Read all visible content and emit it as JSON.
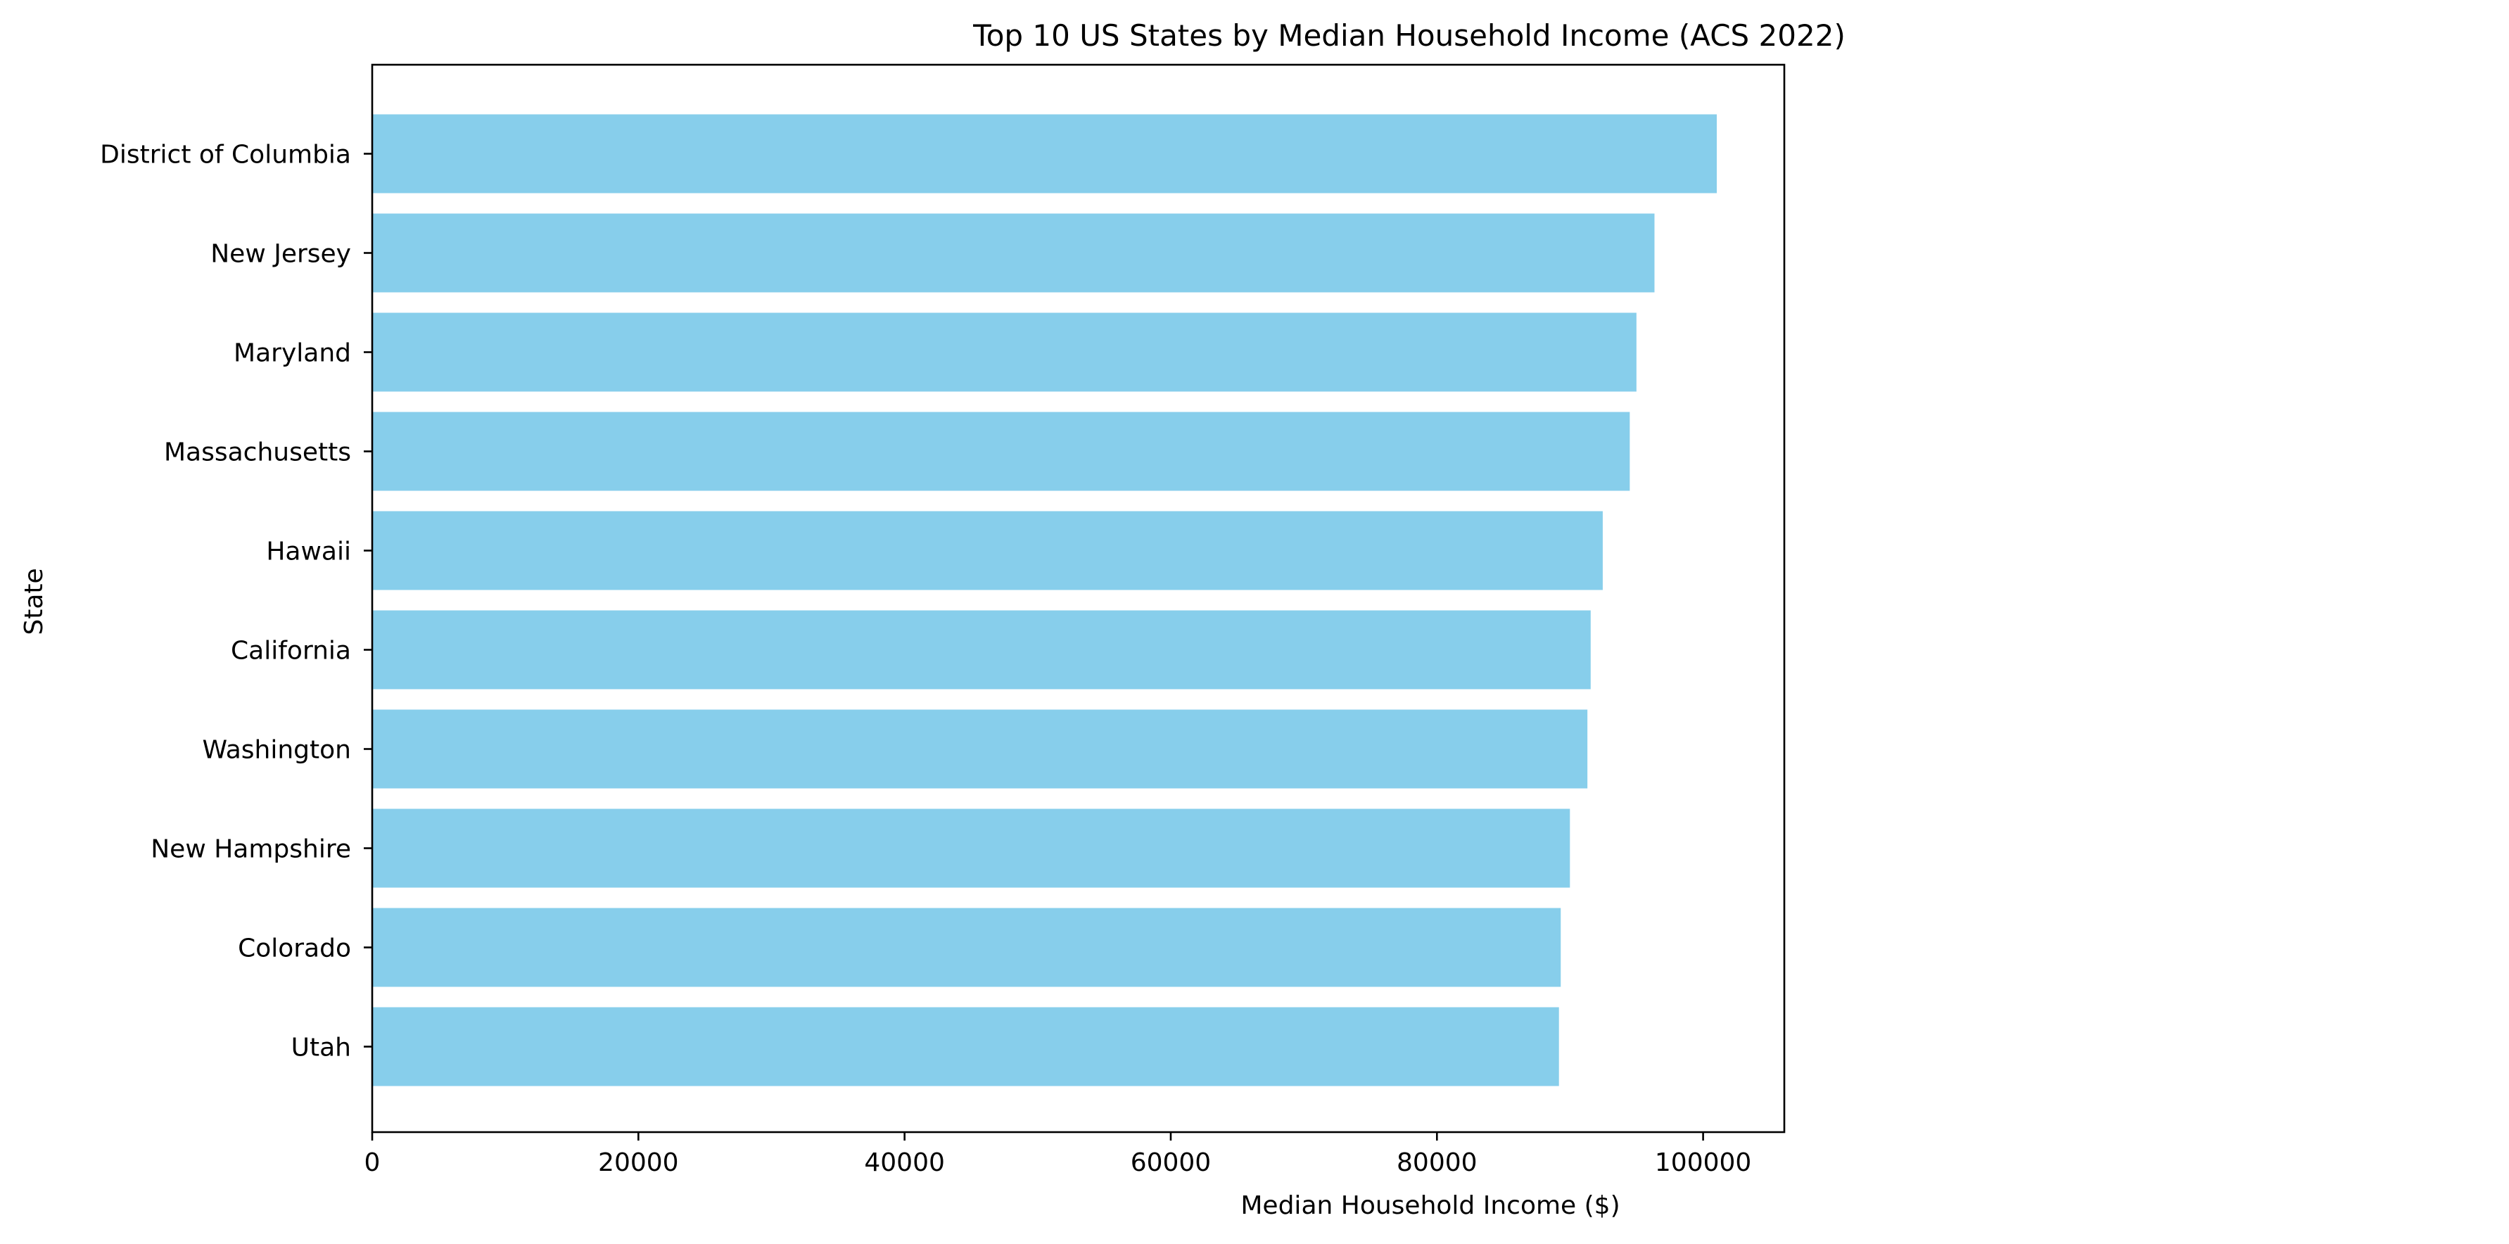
{
  "chart_data": {
    "type": "bar",
    "orientation": "horizontal",
    "title": "Top 10 US States by Median Household Income (ACS 2022)",
    "xlabel": "Median Household Income ($)",
    "ylabel": "State",
    "categories": [
      "District of Columbia",
      "New Jersey",
      "Maryland",
      "Massachusetts",
      "Hawaii",
      "California",
      "Washington",
      "New Hampshire",
      "Colorado",
      "Utah"
    ],
    "values": [
      101027,
      96346,
      94991,
      94488,
      92458,
      91551,
      91306,
      89992,
      89302,
      89168
    ],
    "xlim": [
      0,
      106100
    ],
    "xticks": [
      0,
      20000,
      40000,
      60000,
      80000,
      100000
    ],
    "xtick_labels": [
      "0",
      "20000",
      "40000",
      "60000",
      "80000",
      "100000"
    ],
    "bar_color": "#87ceeb",
    "grid": false,
    "legend": "none"
  }
}
